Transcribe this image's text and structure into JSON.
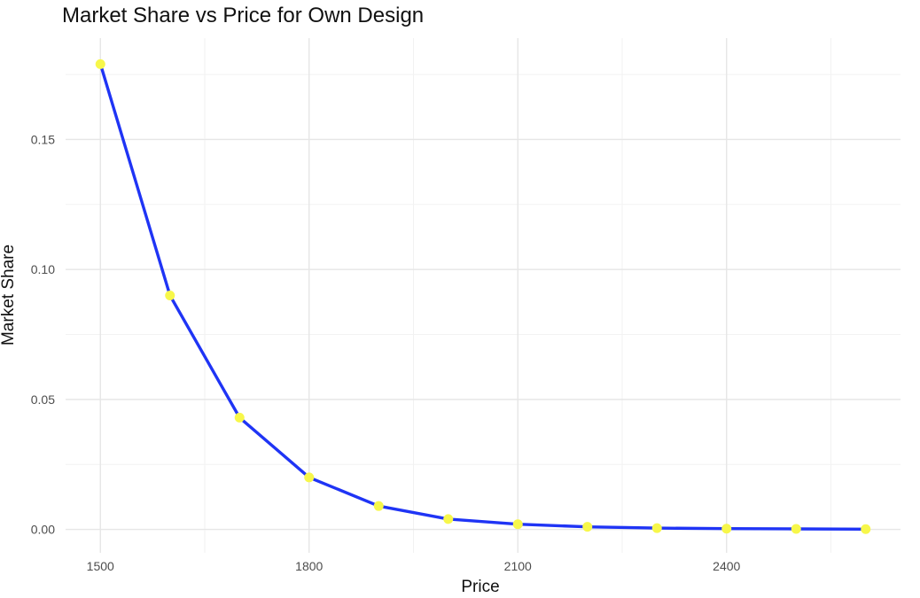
{
  "chart_data": {
    "type": "line",
    "title": "Market Share vs Price for Own Design",
    "xlabel": "Price",
    "ylabel": "Market Share",
    "xlim": [
      1450,
      2650
    ],
    "ylim": [
      -0.009,
      0.189
    ],
    "x_ticks": [
      1500,
      1800,
      2100,
      2400
    ],
    "x_tick_labels": [
      "1500",
      "1800",
      "2100",
      "2400"
    ],
    "y_ticks": [
      0.0,
      0.05,
      0.1,
      0.15
    ],
    "y_tick_labels": [
      "0.00",
      "0.05",
      "0.10",
      "0.15"
    ],
    "grid": true,
    "legend": "none",
    "series": [
      {
        "x": [
          1500,
          1600,
          1700,
          1800,
          1900,
          2000,
          2100,
          2200,
          2300,
          2400,
          2500,
          2600
        ],
        "values": [
          0.179,
          0.09,
          0.043,
          0.02,
          0.009,
          0.004,
          0.002,
          0.001,
          0.0005,
          0.0003,
          0.0002,
          0.0001
        ],
        "line_color": "#1f34f5",
        "point_color": "#f7f74a"
      }
    ]
  }
}
